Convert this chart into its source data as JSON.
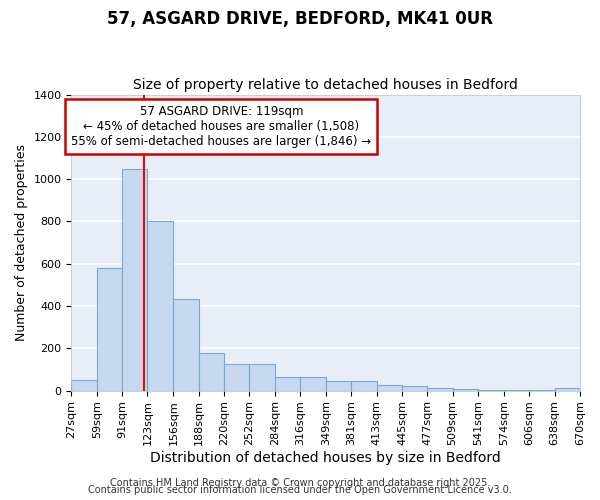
{
  "title1": "57, ASGARD DRIVE, BEDFORD, MK41 0UR",
  "title2": "Size of property relative to detached houses in Bedford",
  "xlabel": "Distribution of detached houses by size in Bedford",
  "ylabel": "Number of detached properties",
  "bar_color": "#c6d9f0",
  "bar_edge_color": "#7ba7d0",
  "plot_bg_color": "#e8eef8",
  "fig_bg_color": "#ffffff",
  "grid_color": "#ffffff",
  "bins": [
    "27sqm",
    "59sqm",
    "91sqm",
    "123sqm",
    "156sqm",
    "188sqm",
    "220sqm",
    "252sqm",
    "284sqm",
    "316sqm",
    "349sqm",
    "381sqm",
    "413sqm",
    "445sqm",
    "477sqm",
    "509sqm",
    "541sqm",
    "574sqm",
    "606sqm",
    "638sqm",
    "670sqm"
  ],
  "bin_edges": [
    27,
    59,
    91,
    123,
    156,
    188,
    220,
    252,
    284,
    316,
    349,
    381,
    413,
    445,
    477,
    509,
    541,
    574,
    606,
    638,
    670
  ],
  "values": [
    50,
    580,
    1050,
    800,
    435,
    180,
    125,
    125,
    65,
    65,
    45,
    45,
    25,
    20,
    12,
    8,
    5,
    4,
    3,
    10
  ],
  "red_line_x": 119,
  "annotation_line1": "57 ASGARD DRIVE: 119sqm",
  "annotation_line2": "← 45% of detached houses are smaller (1,508)",
  "annotation_line3": "55% of semi-detached houses are larger (1,846) →",
  "annotation_box_color": "#ffffff",
  "annotation_edge_color": "#cc0000",
  "ylim": [
    0,
    1400
  ],
  "yticks": [
    0,
    200,
    400,
    600,
    800,
    1000,
    1200,
    1400
  ],
  "footer1": "Contains HM Land Registry data © Crown copyright and database right 2025.",
  "footer2": "Contains public sector information licensed under the Open Government Licence v3.0.",
  "title_fontsize": 12,
  "subtitle_fontsize": 10,
  "ylabel_fontsize": 9,
  "xlabel_fontsize": 10,
  "tick_fontsize": 8,
  "annotation_fontsize": 8.5,
  "footer_fontsize": 7
}
